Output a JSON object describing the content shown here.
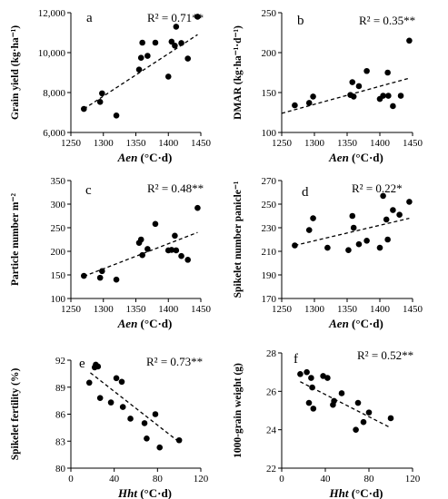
{
  "chart_data": [
    {
      "type": "scatter",
      "panel_label": "a",
      "r2_text": "R² = 0.71**",
      "ylabel": "Grain yield  (kg·ha⁻¹)",
      "xlabel": "Aen  (°C·d)",
      "xlim": [
        1250,
        1450
      ],
      "ylim": [
        6000,
        12000
      ],
      "xticks": [
        1250,
        1300,
        1350,
        1400,
        1450
      ],
      "yticks": [
        6000,
        8000,
        10000,
        12000
      ],
      "ytick_labels": [
        "6,000",
        "8,000",
        "10,000",
        "12,000"
      ],
      "points": [
        [
          1270,
          7180
        ],
        [
          1295,
          7530
        ],
        [
          1298,
          7960
        ],
        [
          1320,
          6850
        ],
        [
          1355,
          9150
        ],
        [
          1358,
          9740
        ],
        [
          1360,
          10500
        ],
        [
          1368,
          9840
        ],
        [
          1380,
          10500
        ],
        [
          1400,
          8800
        ],
        [
          1405,
          10550
        ],
        [
          1410,
          10350
        ],
        [
          1412,
          11300
        ],
        [
          1420,
          10480
        ],
        [
          1430,
          9700
        ],
        [
          1445,
          11800
        ]
      ],
      "trendline": [
        [
          1270,
          7180
        ],
        [
          1445,
          10900
        ]
      ]
    },
    {
      "type": "scatter",
      "panel_label": "b",
      "r2_text": "R² = 0.35**",
      "ylabel": "DMAR  (kg·ha⁻¹·d⁻¹)",
      "xlabel": "Aen  (°C·d)",
      "xlim": [
        1250,
        1450
      ],
      "ylim": [
        100,
        250
      ],
      "xticks": [
        1250,
        1300,
        1350,
        1400,
        1450
      ],
      "yticks": [
        100,
        150,
        200,
        250
      ],
      "ytick_labels": [
        "100",
        "150",
        "200",
        "250"
      ],
      "points": [
        [
          1270,
          134
        ],
        [
          1292,
          137
        ],
        [
          1298,
          145
        ],
        [
          1355,
          147
        ],
        [
          1358,
          163
        ],
        [
          1360,
          145
        ],
        [
          1368,
          158
        ],
        [
          1380,
          177
        ],
        [
          1400,
          142
        ],
        [
          1405,
          146
        ],
        [
          1412,
          175
        ],
        [
          1413,
          146
        ],
        [
          1420,
          133
        ],
        [
          1432,
          146
        ],
        [
          1445,
          215
        ]
      ],
      "trendline": [
        [
          1250,
          124
        ],
        [
          1445,
          168
        ]
      ]
    },
    {
      "type": "scatter",
      "panel_label": "c",
      "r2_text": "R² = 0.48**",
      "ylabel": "Particle number m⁻²",
      "xlabel": "Aen  (°C·d)",
      "xlim": [
        1250,
        1450
      ],
      "ylim": [
        100,
        350
      ],
      "xticks": [
        1250,
        1300,
        1350,
        1400,
        1450
      ],
      "yticks": [
        100,
        150,
        200,
        250,
        300,
        350
      ],
      "ytick_labels": [
        "100",
        "150",
        "200",
        "250",
        "300",
        "350"
      ],
      "points": [
        [
          1270,
          148
        ],
        [
          1295,
          144
        ],
        [
          1298,
          158
        ],
        [
          1320,
          140
        ],
        [
          1355,
          218
        ],
        [
          1358,
          225
        ],
        [
          1360,
          192
        ],
        [
          1368,
          205
        ],
        [
          1380,
          258
        ],
        [
          1400,
          202
        ],
        [
          1405,
          203
        ],
        [
          1410,
          233
        ],
        [
          1412,
          202
        ],
        [
          1420,
          190
        ],
        [
          1430,
          182
        ],
        [
          1445,
          292
        ]
      ],
      "trendline": [
        [
          1270,
          147
        ],
        [
          1445,
          240
        ]
      ]
    },
    {
      "type": "scatter",
      "panel_label": "d",
      "r2_text": "R² = 0.22*",
      "ylabel": "Spikelet number panicle⁻¹",
      "xlabel": "Aen  (°C·d)",
      "xlim": [
        1250,
        1450
      ],
      "ylim": [
        170,
        270
      ],
      "xticks": [
        1250,
        1300,
        1350,
        1400,
        1450
      ],
      "yticks": [
        170,
        190,
        210,
        230,
        250,
        270
      ],
      "ytick_labels": [
        "170",
        "190",
        "210",
        "230",
        "250",
        "270"
      ],
      "points": [
        [
          1270,
          215
        ],
        [
          1292,
          228
        ],
        [
          1298,
          238
        ],
        [
          1320,
          213
        ],
        [
          1352,
          211
        ],
        [
          1358,
          240
        ],
        [
          1360,
          230
        ],
        [
          1368,
          216
        ],
        [
          1380,
          219
        ],
        [
          1400,
          213
        ],
        [
          1405,
          257
        ],
        [
          1410,
          237
        ],
        [
          1412,
          220
        ],
        [
          1420,
          245
        ],
        [
          1430,
          241
        ],
        [
          1445,
          252
        ]
      ],
      "trendline": [
        [
          1270,
          215
        ],
        [
          1445,
          238
        ]
      ]
    },
    {
      "type": "scatter",
      "panel_label": "e",
      "r2_text": "R² = 0.73**",
      "ylabel": "Spikelet fertility (%)",
      "xlabel": "Hht  (°C·d)",
      "xlim": [
        0,
        120
      ],
      "ylim": [
        80,
        92
      ],
      "xticks": [
        0,
        40,
        80,
        120
      ],
      "yticks": [
        80,
        83,
        86,
        89,
        92
      ],
      "ytick_labels": [
        "80",
        "83",
        "86",
        "89",
        "92"
      ],
      "points": [
        [
          17,
          89.5
        ],
        [
          22,
          91.2
        ],
        [
          23,
          91.5
        ],
        [
          25,
          91.3
        ],
        [
          27,
          87.8
        ],
        [
          37,
          87.3
        ],
        [
          42,
          90.0
        ],
        [
          47,
          89.6
        ],
        [
          48,
          86.8
        ],
        [
          55,
          85.5
        ],
        [
          68,
          85.0
        ],
        [
          70,
          83.3
        ],
        [
          78,
          86.0
        ],
        [
          82,
          82.3
        ],
        [
          100,
          83.1
        ]
      ],
      "trendline": [
        [
          18,
          90.6
        ],
        [
          100,
          82.9
        ]
      ]
    },
    {
      "type": "scatter",
      "panel_label": "f",
      "r2_text": "R² = 0.52**",
      "ylabel": "1000-grain weight  (g)",
      "xlabel": "Hht  (°C·d)",
      "xlim": [
        0,
        120
      ],
      "ylim": [
        22,
        28
      ],
      "xticks": [
        0,
        40,
        80,
        120
      ],
      "yticks": [
        22,
        24,
        26,
        28
      ],
      "ytick_labels": [
        "22",
        "24",
        "26",
        "28"
      ],
      "points": [
        [
          17,
          26.9
        ],
        [
          23,
          27.0
        ],
        [
          25,
          25.4
        ],
        [
          27,
          26.7
        ],
        [
          28,
          26.2
        ],
        [
          29,
          25.1
        ],
        [
          38,
          26.8
        ],
        [
          42,
          26.7
        ],
        [
          47,
          25.3
        ],
        [
          48,
          25.5
        ],
        [
          55,
          25.9
        ],
        [
          68,
          24.0
        ],
        [
          70,
          25.4
        ],
        [
          75,
          24.4
        ],
        [
          80,
          24.9
        ],
        [
          100,
          24.6
        ]
      ],
      "trendline": [
        [
          17,
          26.5
        ],
        [
          100,
          24.1
        ]
      ]
    }
  ]
}
